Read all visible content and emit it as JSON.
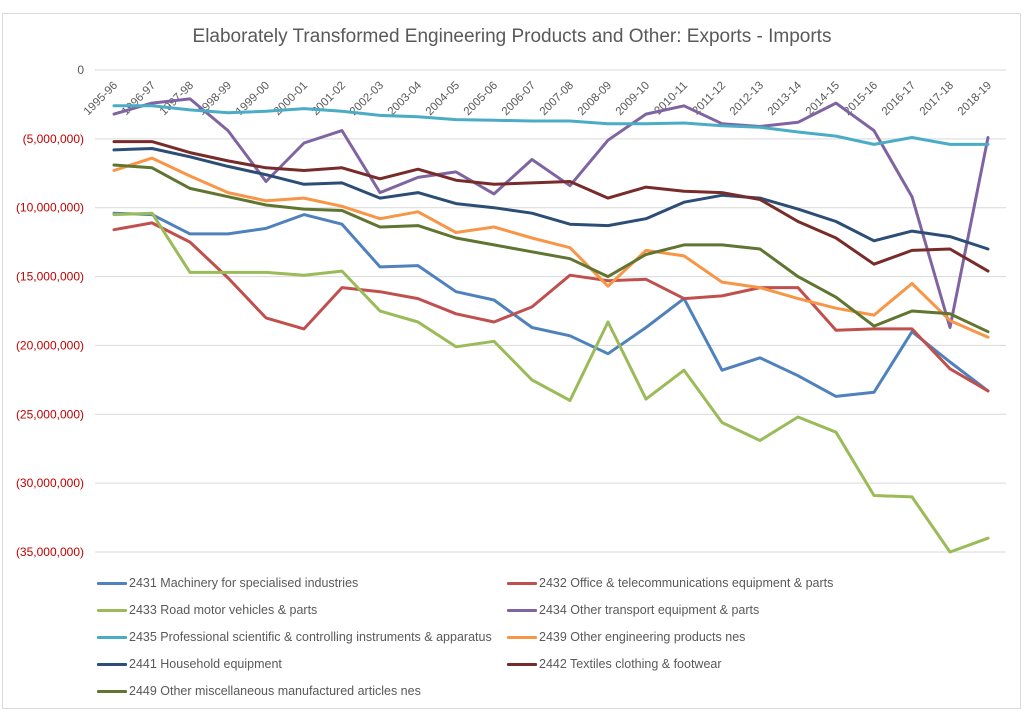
{
  "chart_data": {
    "type": "line",
    "title": "Elaborately Transformed Engineering Products and Other: Exports - Imports",
    "xlabel": "",
    "ylabel": "",
    "ylim": [
      -35000000,
      0
    ],
    "y_ticks": [
      0,
      -5000000,
      -10000000,
      -15000000,
      -20000000,
      -25000000,
      -30000000,
      -35000000
    ],
    "y_tick_labels": [
      "0",
      "(5,000,000)",
      "(10,000,000)",
      "(15,000,000)",
      "(20,000,000)",
      "(25,000,000)",
      "(30,000,000)",
      "(35,000,000)"
    ],
    "grid": true,
    "legend_position": "bottom",
    "categories": [
      "1995-96",
      "1996-97",
      "1997-98",
      "1998-99",
      "1999-00",
      "2000-01",
      "2001-02",
      "2002-03",
      "2003-04",
      "2004-05",
      "2005-06",
      "2006-07",
      "2007-08",
      "2008-09",
      "2009-10",
      "2010-11",
      "2011-12",
      "2012-13",
      "2013-14",
      "2014-15",
      "2015-16",
      "2016-17",
      "2017-18",
      "2018-19"
    ],
    "series": [
      {
        "name": "2431 Machinery for specialised industries",
        "color": "#4f81bd",
        "values": [
          -10400000,
          -10500000,
          -11900000,
          -11900000,
          -11500000,
          -10500000,
          -11200000,
          -14300000,
          -14200000,
          -16100000,
          -16700000,
          -18700000,
          -19300000,
          -20600000,
          -18700000,
          -16600000,
          -21800000,
          -20900000,
          -22200000,
          -23700000,
          -23400000,
          -19000000,
          -21200000,
          -23300000
        ]
      },
      {
        "name": "2432 Office & telecommunications equipment & parts",
        "color": "#c0504d",
        "values": [
          -11600000,
          -11100000,
          -12500000,
          -15100000,
          -18000000,
          -18800000,
          -15800000,
          -16100000,
          -16600000,
          -17700000,
          -18300000,
          -17200000,
          -14900000,
          -15300000,
          -15200000,
          -16600000,
          -16400000,
          -15800000,
          -15800000,
          -18900000,
          -18800000,
          -18800000,
          -21700000,
          -23300000
        ]
      },
      {
        "name": "2433 Road motor vehicles & parts",
        "color": "#9bbb59",
        "values": [
          -10500000,
          -10400000,
          -14700000,
          -14700000,
          -14700000,
          -14900000,
          -14600000,
          -17500000,
          -18300000,
          -20100000,
          -19700000,
          -22500000,
          -24000000,
          -18300000,
          -23900000,
          -21800000,
          -25600000,
          -26900000,
          -25200000,
          -26300000,
          -30900000,
          -31000000,
          -35000000,
          -34000000
        ]
      },
      {
        "name": "2434 Other transport equipment & parts",
        "color": "#8064a2",
        "values": [
          -3200000,
          -2400000,
          -2100000,
          -4400000,
          -8100000,
          -5300000,
          -4400000,
          -8900000,
          -7800000,
          -7400000,
          -9000000,
          -6500000,
          -8400000,
          -5100000,
          -3200000,
          -2600000,
          -3900000,
          -4100000,
          -3800000,
          -2400000,
          -4400000,
          -9200000,
          -18700000,
          -4900000
        ]
      },
      {
        "name": "2435 Professional scientific & controlling instruments & apparatus",
        "color": "#4bacc6",
        "values": [
          -2600000,
          -2600000,
          -2900000,
          -3100000,
          -3000000,
          -2800000,
          -3000000,
          -3300000,
          -3400000,
          -3600000,
          -3650000,
          -3700000,
          -3700000,
          -3900000,
          -3900000,
          -3850000,
          -4050000,
          -4150000,
          -4500000,
          -4800000,
          -5400000,
          -4900000,
          -5400000,
          -5400000
        ]
      },
      {
        "name": "2439 Other engineering products nes",
        "color": "#f79646",
        "values": [
          -7300000,
          -6400000,
          -7700000,
          -8900000,
          -9500000,
          -9300000,
          -9900000,
          -10800000,
          -10300000,
          -11800000,
          -11400000,
          -12200000,
          -12900000,
          -15700000,
          -13100000,
          -13500000,
          -15400000,
          -15800000,
          -16600000,
          -17300000,
          -17800000,
          -15500000,
          -18200000,
          -19400000
        ]
      },
      {
        "name": "2441 Household equipment",
        "color": "#2c4d75",
        "values": [
          -5800000,
          -5700000,
          -6300000,
          -7000000,
          -7600000,
          -8300000,
          -8200000,
          -9300000,
          -8900000,
          -9700000,
          -10000000,
          -10400000,
          -11200000,
          -11300000,
          -10800000,
          -9600000,
          -9100000,
          -9300000,
          -10100000,
          -11000000,
          -12400000,
          -11700000,
          -12100000,
          -13000000
        ]
      },
      {
        "name": "2442 Textiles clothing & footwear",
        "color": "#772c2a",
        "values": [
          -5200000,
          -5200000,
          -6000000,
          -6600000,
          -7100000,
          -7300000,
          -7100000,
          -7900000,
          -7200000,
          -8000000,
          -8300000,
          -8200000,
          -8100000,
          -9300000,
          -8500000,
          -8800000,
          -8900000,
          -9400000,
          -11000000,
          -12200000,
          -14100000,
          -13100000,
          -13000000,
          -14600000
        ]
      },
      {
        "name": "2449 Other miscellaneous manufactured articles nes",
        "color": "#5f7530",
        "values": [
          -6900000,
          -7100000,
          -8600000,
          -9200000,
          -9800000,
          -10100000,
          -10200000,
          -11400000,
          -11300000,
          -12200000,
          -12700000,
          -13200000,
          -13700000,
          -15000000,
          -13400000,
          -12700000,
          -12700000,
          -13000000,
          -15000000,
          -16500000,
          -18600000,
          -17500000,
          -17700000,
          -19000000
        ]
      }
    ]
  }
}
